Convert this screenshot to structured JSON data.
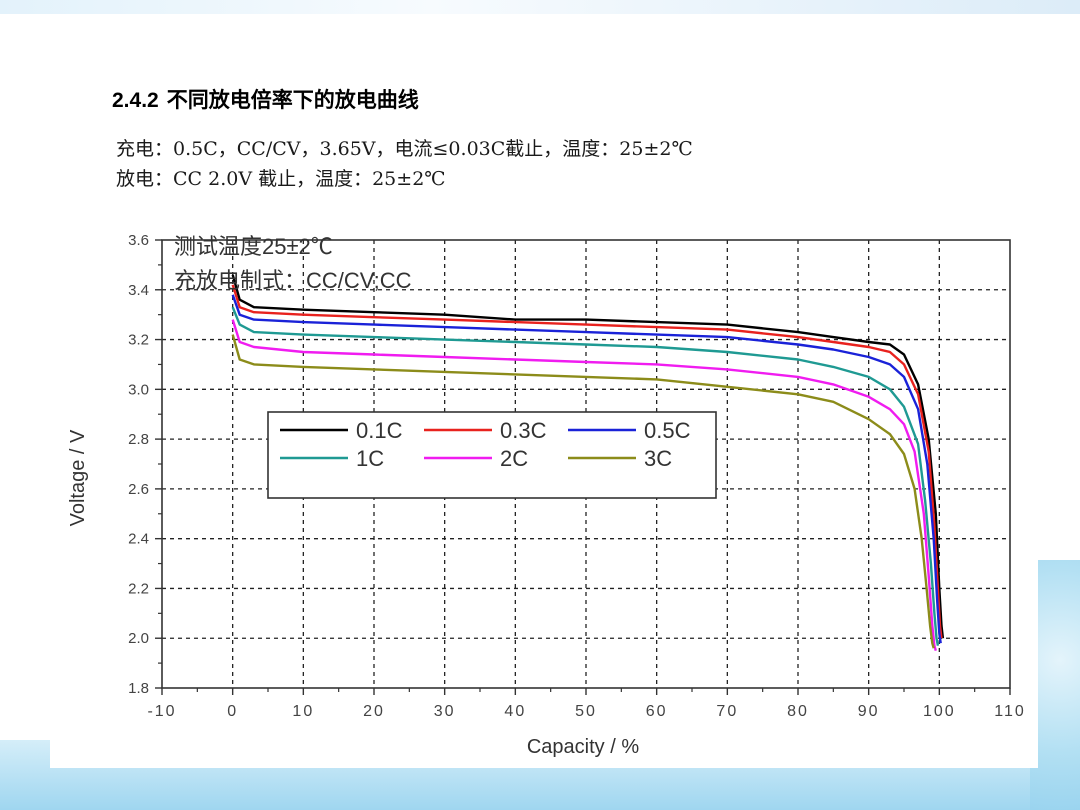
{
  "slide": {
    "heading_number": "2.4.2",
    "heading_text": "不同放电倍率下的放电曲线",
    "charge_line": "充电：0.5C，CC/CV，3.65V，电流≤0.03C截止，温度：25±2℃",
    "discharge_line": "放电：CC 2.0V 截止，温度：25±2℃"
  },
  "chart_data": {
    "type": "line",
    "annotation_line1": "测试温度25±2℃",
    "annotation_line2": "充放电制式：CC/CV;CC",
    "xlabel": "Capacity / %",
    "ylabel": "Voltage / V",
    "xlim": [
      -10,
      110
    ],
    "ylim": [
      1.8,
      3.6
    ],
    "x_ticks": [
      "-10",
      "0",
      "10",
      "20",
      "30",
      "40",
      "50",
      "60",
      "70",
      "80",
      "90",
      "100",
      "110"
    ],
    "y_ticks": [
      "1.8",
      "2.0",
      "2.2",
      "2.4",
      "2.6",
      "2.8",
      "3.0",
      "3.2",
      "3.4",
      "3.6"
    ],
    "grid": true,
    "legend_position": "center-left",
    "series": [
      {
        "name": "0.1C",
        "color": "#000000",
        "x": [
          0,
          1,
          3,
          10,
          20,
          30,
          40,
          50,
          60,
          70,
          80,
          85,
          90,
          93,
          95,
          97,
          98.5,
          99.5,
          100,
          100.3,
          100.5
        ],
        "y": [
          3.46,
          3.36,
          3.33,
          3.32,
          3.31,
          3.3,
          3.28,
          3.28,
          3.27,
          3.26,
          3.23,
          3.21,
          3.19,
          3.18,
          3.14,
          3.02,
          2.8,
          2.5,
          2.2,
          2.05,
          2.0
        ]
      },
      {
        "name": "0.3C",
        "color": "#e8221e",
        "x": [
          0,
          1,
          3,
          10,
          20,
          30,
          40,
          50,
          60,
          70,
          80,
          85,
          90,
          93,
          95,
          97,
          98.5,
          99.3,
          99.8,
          100.1,
          100.3
        ],
        "y": [
          3.42,
          3.33,
          3.31,
          3.3,
          3.29,
          3.28,
          3.27,
          3.26,
          3.25,
          3.24,
          3.21,
          3.19,
          3.17,
          3.15,
          3.1,
          2.98,
          2.75,
          2.45,
          2.2,
          2.05,
          2.0
        ]
      },
      {
        "name": "0.5C",
        "color": "#1a22d8",
        "x": [
          0,
          1,
          3,
          10,
          20,
          30,
          40,
          50,
          60,
          70,
          80,
          85,
          90,
          93,
          95,
          97,
          98.3,
          99.2,
          99.7,
          100,
          100.2
        ],
        "y": [
          3.38,
          3.3,
          3.28,
          3.27,
          3.26,
          3.25,
          3.24,
          3.23,
          3.22,
          3.21,
          3.18,
          3.16,
          3.13,
          3.1,
          3.05,
          2.92,
          2.7,
          2.4,
          2.15,
          2.02,
          1.98
        ]
      },
      {
        "name": "1C",
        "color": "#1f9a93",
        "x": [
          0,
          1,
          3,
          10,
          20,
          30,
          40,
          50,
          60,
          70,
          80,
          85,
          90,
          93,
          95,
          97,
          98,
          98.8,
          99.3,
          99.6,
          99.8
        ],
        "y": [
          3.33,
          3.26,
          3.23,
          3.22,
          3.21,
          3.2,
          3.19,
          3.18,
          3.17,
          3.15,
          3.12,
          3.09,
          3.05,
          3.0,
          2.93,
          2.78,
          2.55,
          2.3,
          2.1,
          2.0,
          1.97
        ]
      },
      {
        "name": "2C",
        "color": "#f01cf0",
        "x": [
          0,
          1,
          3,
          10,
          20,
          30,
          40,
          50,
          60,
          70,
          80,
          85,
          90,
          93,
          95,
          96.5,
          97.8,
          98.5,
          99,
          99.3,
          99.5
        ],
        "y": [
          3.28,
          3.19,
          3.17,
          3.15,
          3.14,
          3.13,
          3.12,
          3.11,
          3.1,
          3.08,
          3.05,
          3.02,
          2.97,
          2.92,
          2.86,
          2.75,
          2.5,
          2.25,
          2.05,
          1.97,
          1.95
        ]
      },
      {
        "name": "3C",
        "color": "#8c8c1a",
        "x": [
          0,
          1,
          3,
          10,
          20,
          30,
          40,
          50,
          60,
          70,
          80,
          85,
          90,
          93,
          95,
          96.5,
          97.5,
          98.2,
          98.7,
          99,
          99.2
        ],
        "y": [
          3.22,
          3.12,
          3.1,
          3.09,
          3.08,
          3.07,
          3.06,
          3.05,
          3.04,
          3.01,
          2.98,
          2.95,
          2.88,
          2.82,
          2.74,
          2.6,
          2.4,
          2.2,
          2.05,
          1.98,
          1.96
        ]
      }
    ]
  }
}
